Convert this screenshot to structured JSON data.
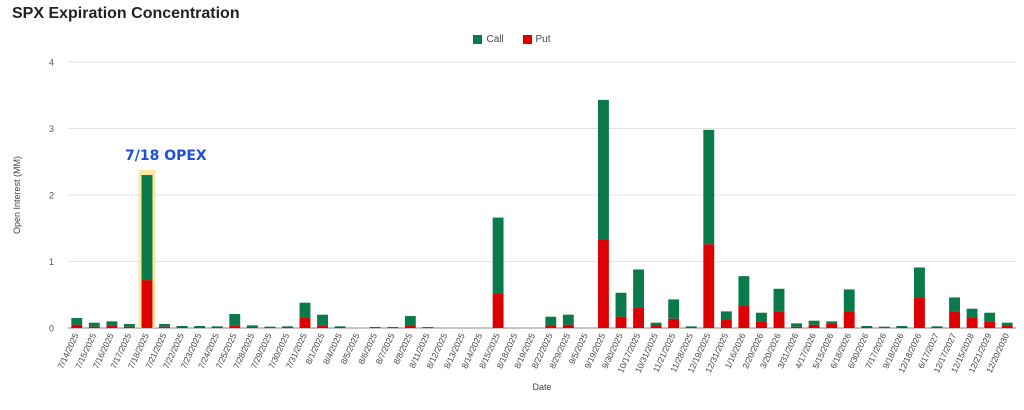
{
  "chart_data": {
    "type": "bar",
    "stacked": true,
    "title": "SPX Expiration Concentration",
    "xlabel": "Date",
    "ylabel": "Open Interest (MM)",
    "ylim": [
      0,
      4
    ],
    "yticks": [
      "0",
      "1",
      "2",
      "3",
      "4"
    ],
    "grid": true,
    "legend_position": "top-center",
    "categories": [
      "7/14/2025",
      "7/15/2025",
      "7/16/2025",
      "7/17/2025",
      "7/18/2025",
      "7/21/2025",
      "7/22/2025",
      "7/23/2025",
      "7/24/2025",
      "7/25/2025",
      "7/28/2025",
      "7/29/2025",
      "7/30/2025",
      "7/31/2025",
      "8/1/2025",
      "8/4/2025",
      "8/5/2025",
      "8/6/2025",
      "8/7/2025",
      "8/8/2025",
      "8/11/2025",
      "8/12/2025",
      "8/13/2025",
      "8/14/2025",
      "8/15/2025",
      "8/18/2025",
      "8/19/2025",
      "8/22/2025",
      "8/29/2025",
      "9/5/2025",
      "9/19/2025",
      "9/30/2025",
      "10/17/2025",
      "10/31/2025",
      "11/21/2025",
      "11/28/2025",
      "12/19/2025",
      "12/31/2025",
      "1/16/2026",
      "2/20/2026",
      "3/20/2026",
      "3/31/2026",
      "4/17/2026",
      "5/15/2026",
      "6/18/2026",
      "6/30/2026",
      "7/17/2026",
      "9/18/2026",
      "12/18/2026",
      "6/17/2027",
      "12/17/2027",
      "12/15/2028",
      "12/21/2029",
      "12/20/2030"
    ],
    "series": [
      {
        "name": "Put",
        "color": "#dd0000",
        "values": [
          0.05,
          0.02,
          0.04,
          0.02,
          0.72,
          0.02,
          0.01,
          0.01,
          0.01,
          0.04,
          0.01,
          0.005,
          0.01,
          0.15,
          0.04,
          0.01,
          0.0,
          0.0,
          0.0,
          0.03,
          0.0,
          0.0,
          0.0,
          0.0,
          0.52,
          0.0,
          0.0,
          0.03,
          0.05,
          0.0,
          1.33,
          0.17,
          0.3,
          0.03,
          0.14,
          0.01,
          1.26,
          0.12,
          0.33,
          0.1,
          0.25,
          0.02,
          0.05,
          0.06,
          0.25,
          0.01,
          0.005,
          0.01,
          0.46,
          0.01,
          0.25,
          0.15,
          0.1,
          0.03
        ]
      },
      {
        "name": "Call",
        "color": "#0b7a4a",
        "values": [
          0.1,
          0.06,
          0.06,
          0.04,
          1.58,
          0.04,
          0.02,
          0.02,
          0.01,
          0.17,
          0.03,
          0.005,
          0.01,
          0.23,
          0.16,
          0.01,
          0.0,
          0.01,
          0.01,
          0.15,
          0.01,
          0.0,
          0.0,
          0.0,
          1.14,
          0.0,
          0.0,
          0.14,
          0.15,
          0.0,
          2.1,
          0.36,
          0.58,
          0.05,
          0.29,
          0.01,
          1.72,
          0.13,
          0.45,
          0.13,
          0.34,
          0.05,
          0.06,
          0.04,
          0.33,
          0.02,
          0.005,
          0.02,
          0.45,
          0.01,
          0.21,
          0.14,
          0.13,
          0.05
        ]
      }
    ],
    "legend_entries": [
      "Call",
      "Put"
    ],
    "annotations": [
      {
        "text": "7/18 OPEX",
        "category": "7/18/2025",
        "highlight_color": "#fbe49a",
        "text_color": "#1f4fd8"
      }
    ]
  }
}
